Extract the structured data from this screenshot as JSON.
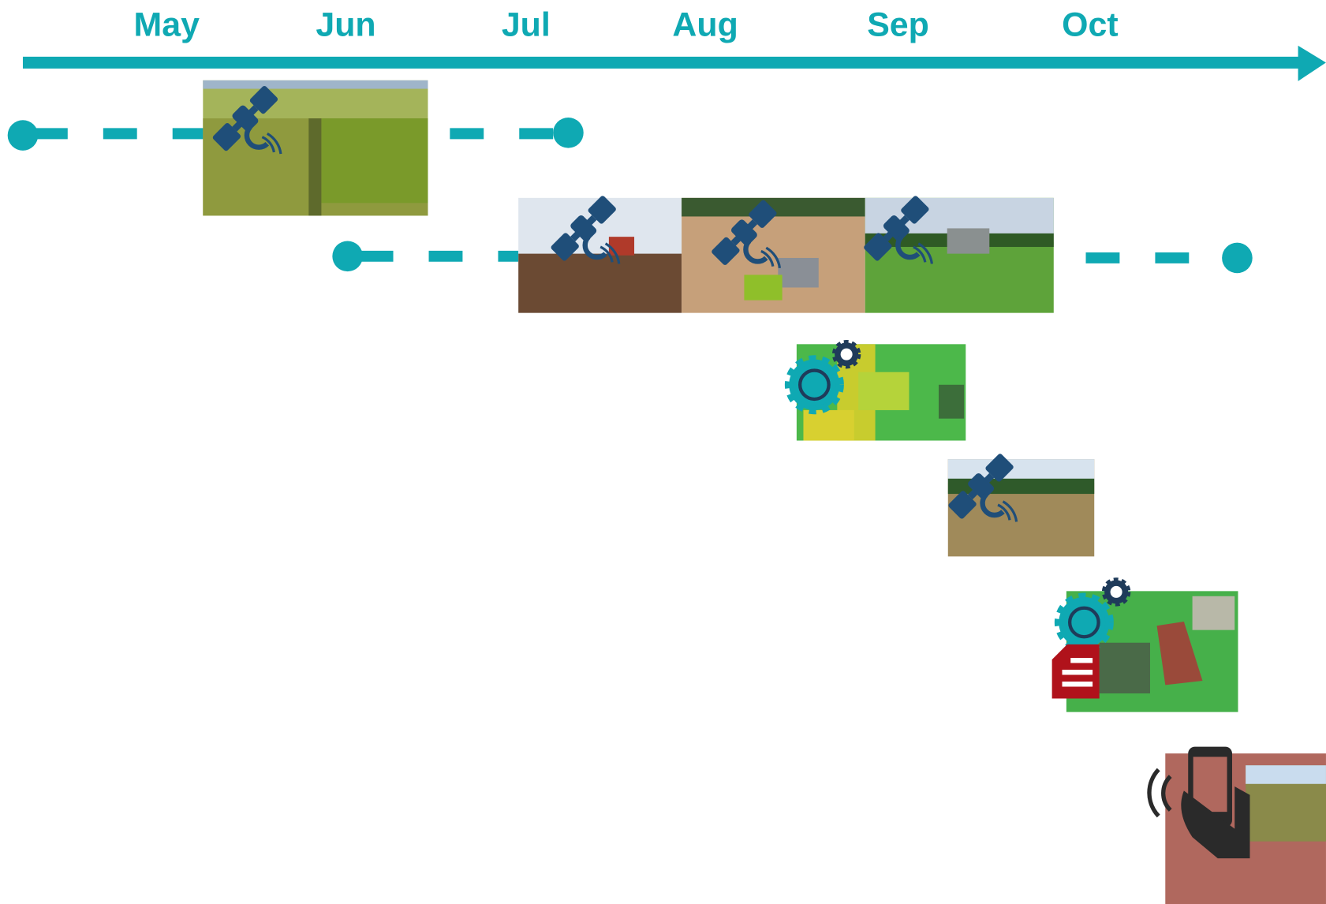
{
  "months": [
    "May",
    "Jun",
    "Jul",
    "Aug",
    "Sep",
    "Oct"
  ]
}
